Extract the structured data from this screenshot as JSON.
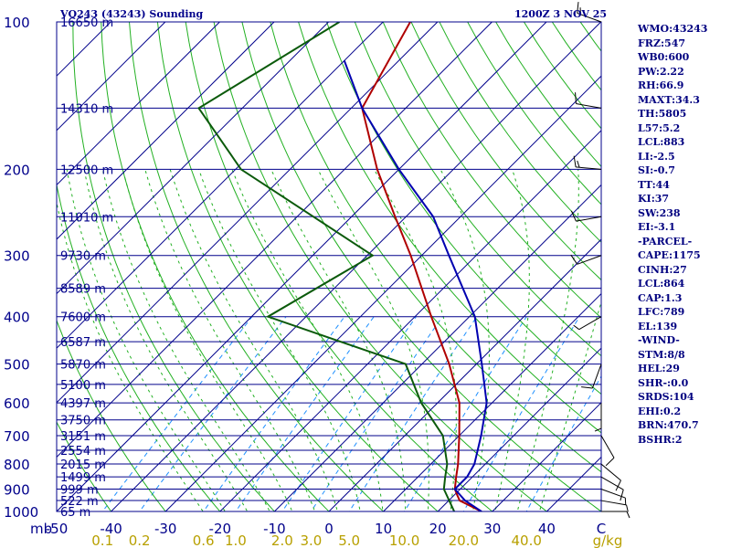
{
  "header": {
    "title": "VQ243 (43243) Sounding",
    "datetime": "1200Z  3 NOV 25"
  },
  "stats": [
    "WMO:43243",
    "FRZ:547",
    "WB0:600",
    "PW:2.22",
    "RH:66.9",
    "MAXT:34.3",
    "TH:5805",
    "L57:5.2",
    "LCL:883",
    "LI:-2.5",
    "SI:-0.7",
    "TT:44",
    "KI:37",
    "SW:238",
    "EI:-3.1",
    "-PARCEL-",
    "CAPE:1175",
    "CINH:27",
    "LCL:864",
    "CAP:1.3",
    "LFC:789",
    "EL:139",
    "-WIND-",
    "STM:8/8",
    "HEL:29",
    "SHR-:0.0",
    "SRDS:104",
    "EHI:0.2",
    "BRN:470.7",
    "BSHR:2"
  ],
  "colors": {
    "frame": "#00008b",
    "isobar": "#00008b",
    "isotherm": "#00008b",
    "dry_adiabat": "#22b022",
    "moist_adiabat": "#22b022",
    "mixing_ratio": "#1e90ff",
    "temperature": "#b00000",
    "dewpoint": "#0b5a0b",
    "parcel": "#0000b0",
    "tick_labels": "#b8a000"
  },
  "chart_data": {
    "type": "line",
    "subtype": "skew-T log-P sounding",
    "pressure_axis": {
      "unit_label": "mb",
      "ticks": [
        "100",
        "200",
        "300",
        "400",
        "500",
        "600",
        "700",
        "800",
        "900",
        "1000"
      ],
      "range": [
        100,
        1000
      ],
      "scale": "log"
    },
    "temperature_axis": {
      "ticks": [
        "-50",
        "-40",
        "-30",
        "-20",
        "-10",
        "0",
        "10",
        "20",
        "30",
        "40",
        "C"
      ],
      "range": [
        -50,
        50
      ]
    },
    "mixing_ratio_axis": {
      "unit_label": "g/kg",
      "ticks": [
        "0.1",
        "0.2",
        "0.6",
        "1.0",
        "2.0",
        "3.0",
        "5.0",
        "10.0",
        "20.0",
        "40.0"
      ],
      "values": [
        0.1,
        0.2,
        0.6,
        1.0,
        2.0,
        3.0,
        5.0,
        10.0,
        20.0,
        40.0
      ]
    },
    "height_labels": [
      {
        "p": 100,
        "label": "16650 m"
      },
      {
        "p": 150,
        "label": "14310 m"
      },
      {
        "p": 200,
        "label": "12500 m"
      },
      {
        "p": 250,
        "label": "11010 m"
      },
      {
        "p": 300,
        "label": "9730 m"
      },
      {
        "p": 350,
        "label": "8589 m"
      },
      {
        "p": 400,
        "label": "7600 m"
      },
      {
        "p": 450,
        "label": "6587 m"
      },
      {
        "p": 500,
        "label": "5870 m"
      },
      {
        "p": 550,
        "label": "5100 m"
      },
      {
        "p": 600,
        "label": "4397 m"
      },
      {
        "p": 650,
        "label": "3750 m"
      },
      {
        "p": 700,
        "label": "3151 m"
      },
      {
        "p": 750,
        "label": "2554 m"
      },
      {
        "p": 800,
        "label": "2015 m"
      },
      {
        "p": 850,
        "label": "1499 m"
      },
      {
        "p": 900,
        "label": "999 m"
      },
      {
        "p": 950,
        "label": "522 m"
      },
      {
        "p": 1000,
        "label": "65 m"
      }
    ],
    "series": [
      {
        "key": "temperature",
        "points": [
          {
            "p": 1000,
            "t": 28
          },
          {
            "p": 950,
            "t": 22
          },
          {
            "p": 925,
            "t": 20.5
          },
          {
            "p": 900,
            "t": 19
          },
          {
            "p": 850,
            "t": 17
          },
          {
            "p": 800,
            "t": 15
          },
          {
            "p": 700,
            "t": 10
          },
          {
            "p": 600,
            "t": 4
          },
          {
            "p": 500,
            "t": -5
          },
          {
            "p": 400,
            "t": -17
          },
          {
            "p": 300,
            "t": -32
          },
          {
            "p": 250,
            "t": -42
          },
          {
            "p": 200,
            "t": -54
          },
          {
            "p": 150,
            "t": -68
          },
          {
            "p": 100,
            "t": -75
          }
        ]
      },
      {
        "key": "dewpoint",
        "points": [
          {
            "p": 1000,
            "t": 23
          },
          {
            "p": 900,
            "t": 17
          },
          {
            "p": 850,
            "t": 15
          },
          {
            "p": 800,
            "t": 13
          },
          {
            "p": 700,
            "t": 7
          },
          {
            "p": 600,
            "t": -3
          },
          {
            "p": 500,
            "t": -13
          },
          {
            "p": 400,
            "t": -47
          },
          {
            "p": 300,
            "t": -39
          },
          {
            "p": 200,
            "t": -79
          },
          {
            "p": 150,
            "t": -98
          },
          {
            "p": 100,
            "t": -88
          }
        ]
      },
      {
        "key": "parcel",
        "points": [
          {
            "p": 1000,
            "t": 28
          },
          {
            "p": 950,
            "t": 23
          },
          {
            "p": 900,
            "t": 19
          },
          {
            "p": 850,
            "t": 19
          },
          {
            "p": 800,
            "t": 18
          },
          {
            "p": 700,
            "t": 14
          },
          {
            "p": 600,
            "t": 9
          },
          {
            "p": 500,
            "t": 1
          },
          {
            "p": 400,
            "t": -9
          },
          {
            "p": 300,
            "t": -25
          },
          {
            "p": 250,
            "t": -35
          },
          {
            "p": 200,
            "t": -50
          },
          {
            "p": 150,
            "t": -68
          },
          {
            "p": 120,
            "t": -80
          }
        ]
      }
    ],
    "wind_barbs": [
      {
        "p": 100,
        "dir": 290,
        "kt": 15
      },
      {
        "p": 150,
        "dir": 280,
        "kt": 10
      },
      {
        "p": 200,
        "dir": 275,
        "kt": 15
      },
      {
        "p": 250,
        "dir": 260,
        "kt": 10
      },
      {
        "p": 300,
        "dir": 250,
        "kt": 10
      },
      {
        "p": 400,
        "dir": 240,
        "kt": 5
      },
      {
        "p": 500,
        "dir": 200,
        "kt": 10
      },
      {
        "p": 600,
        "dir": 180,
        "kt": 5
      },
      {
        "p": 700,
        "dir": 150,
        "kt": 10
      },
      {
        "p": 800,
        "dir": 130,
        "kt": 10
      },
      {
        "p": 850,
        "dir": 120,
        "kt": 10
      },
      {
        "p": 900,
        "dir": 110,
        "kt": 5
      },
      {
        "p": 950,
        "dir": 100,
        "kt": 5
      },
      {
        "p": 1000,
        "dir": 90,
        "kt": 5
      }
    ]
  }
}
